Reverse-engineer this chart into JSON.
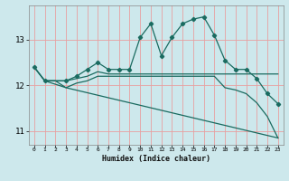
{
  "title": "",
  "xlabel": "Humidex (Indice chaleur)",
  "background_color": "#cde8ec",
  "grid_color": "#e8a0a0",
  "line_color": "#1a6b60",
  "xlim": [
    -0.5,
    23.5
  ],
  "ylim": [
    10.7,
    13.75
  ],
  "xticks": [
    0,
    1,
    2,
    3,
    4,
    5,
    6,
    7,
    8,
    9,
    10,
    11,
    12,
    13,
    14,
    15,
    16,
    17,
    18,
    19,
    20,
    21,
    22,
    23
  ],
  "yticks": [
    11,
    12,
    13
  ],
  "series": [
    {
      "x": [
        0,
        1,
        3,
        4,
        5,
        6,
        7,
        8,
        9,
        10,
        11,
        12,
        13,
        14,
        15,
        16,
        17,
        18,
        19,
        20,
        21,
        22,
        23
      ],
      "y": [
        12.4,
        12.1,
        12.1,
        12.2,
        12.35,
        12.5,
        12.35,
        12.35,
        12.35,
        13.05,
        13.35,
        12.65,
        13.05,
        13.35,
        13.45,
        13.5,
        13.1,
        12.55,
        12.35,
        12.35,
        12.15,
        11.82,
        11.6
      ],
      "marker": true
    },
    {
      "x": [
        0,
        1,
        2,
        3,
        4,
        5,
        6,
        7,
        8,
        9,
        10,
        11,
        12,
        13,
        14,
        15,
        16,
        17,
        18,
        19,
        20,
        21,
        22,
        23
      ],
      "y": [
        12.4,
        12.1,
        12.1,
        12.1,
        12.15,
        12.2,
        12.3,
        12.25,
        12.25,
        12.25,
        12.25,
        12.25,
        12.25,
        12.25,
        12.25,
        12.25,
        12.25,
        12.25,
        12.25,
        12.25,
        12.25,
        12.25,
        12.25,
        12.25
      ],
      "marker": false
    },
    {
      "x": [
        0,
        1,
        2,
        3,
        4,
        5,
        6,
        7,
        8,
        9,
        10,
        11,
        12,
        13,
        14,
        15,
        16,
        17,
        18,
        19,
        20,
        21,
        22,
        23
      ],
      "y": [
        12.4,
        12.1,
        12.1,
        11.95,
        12.05,
        12.1,
        12.2,
        12.2,
        12.2,
        12.2,
        12.2,
        12.2,
        12.2,
        12.2,
        12.2,
        12.2,
        12.2,
        12.2,
        11.95,
        11.9,
        11.82,
        11.62,
        11.32,
        10.85
      ],
      "marker": false
    },
    {
      "x": [
        1,
        3,
        23
      ],
      "y": [
        12.1,
        11.95,
        10.85
      ],
      "marker": false
    }
  ]
}
